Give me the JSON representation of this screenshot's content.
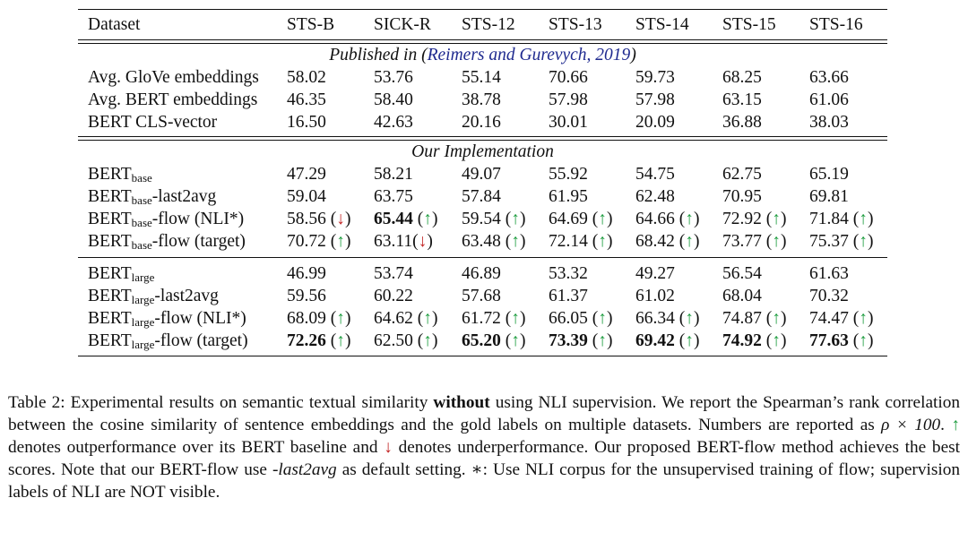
{
  "table": {
    "header": [
      "Dataset",
      "STS-B",
      "SICK-R",
      "STS-12",
      "STS-13",
      "STS-14",
      "STS-15",
      "STS-16"
    ],
    "sections": [
      {
        "title_prefix": "Published in (",
        "citation": "Reimers and Gurevych, 2019",
        "title_suffix": ")",
        "rows": [
          {
            "label": "Avg. GloVe embeddings",
            "cells": [
              {
                "v": "58.02"
              },
              {
                "v": "53.76"
              },
              {
                "v": "55.14"
              },
              {
                "v": "70.66"
              },
              {
                "v": "59.73"
              },
              {
                "v": "68.25"
              },
              {
                "v": "63.66"
              }
            ]
          },
          {
            "label": "Avg. BERT embeddings",
            "cells": [
              {
                "v": "46.35"
              },
              {
                "v": "58.40"
              },
              {
                "v": "38.78"
              },
              {
                "v": "57.98"
              },
              {
                "v": "57.98"
              },
              {
                "v": "63.15"
              },
              {
                "v": "61.06"
              }
            ]
          },
          {
            "label": "BERT CLS-vector",
            "cells": [
              {
                "v": "16.50"
              },
              {
                "v": "42.63"
              },
              {
                "v": "20.16"
              },
              {
                "v": "30.01"
              },
              {
                "v": "20.09"
              },
              {
                "v": "36.88"
              },
              {
                "v": "38.03"
              }
            ]
          }
        ]
      },
      {
        "title": "Our Implementation",
        "rows": [
          {
            "label": "BERT",
            "sub": "base",
            "suffix": "",
            "cells": [
              {
                "v": "47.29"
              },
              {
                "v": "58.21"
              },
              {
                "v": "49.07"
              },
              {
                "v": "55.92"
              },
              {
                "v": "54.75"
              },
              {
                "v": "62.75"
              },
              {
                "v": "65.19"
              }
            ]
          },
          {
            "label": "BERT",
            "sub": "base",
            "suffix": "-last2avg",
            "cells": [
              {
                "v": "59.04"
              },
              {
                "v": "63.75"
              },
              {
                "v": "57.84"
              },
              {
                "v": "61.95"
              },
              {
                "v": "62.48"
              },
              {
                "v": "70.95"
              },
              {
                "v": "69.81"
              }
            ]
          },
          {
            "label": "BERT",
            "sub": "base",
            "suffix": "-flow (NLI*)",
            "cells": [
              {
                "v": "58.56",
                "a": "down"
              },
              {
                "v": "65.44",
                "a": "up",
                "b": true
              },
              {
                "v": "59.54",
                "a": "up"
              },
              {
                "v": "64.69",
                "a": "up"
              },
              {
                "v": "64.66",
                "a": "up"
              },
              {
                "v": "72.92",
                "a": "up"
              },
              {
                "v": "71.84",
                "a": "up"
              }
            ]
          },
          {
            "label": "BERT",
            "sub": "base",
            "suffix": "-flow (target)",
            "cells": [
              {
                "v": "70.72",
                "a": "up"
              },
              {
                "v": "63.11",
                "a": "down",
                "nosp": true
              },
              {
                "v": "63.48",
                "a": "up"
              },
              {
                "v": "72.14",
                "a": "up"
              },
              {
                "v": "68.42",
                "a": "up"
              },
              {
                "v": "73.77",
                "a": "up"
              },
              {
                "v": "75.37",
                "a": "up"
              }
            ]
          }
        ]
      },
      {
        "rows": [
          {
            "label": "BERT",
            "sub": "large",
            "suffix": "",
            "cells": [
              {
                "v": "46.99"
              },
              {
                "v": "53.74"
              },
              {
                "v": "46.89"
              },
              {
                "v": "53.32"
              },
              {
                "v": "49.27"
              },
              {
                "v": "56.54"
              },
              {
                "v": "61.63"
              }
            ]
          },
          {
            "label": "BERT",
            "sub": "large",
            "suffix": "-last2avg",
            "cells": [
              {
                "v": "59.56"
              },
              {
                "v": "60.22"
              },
              {
                "v": "57.68"
              },
              {
                "v": "61.37"
              },
              {
                "v": "61.02"
              },
              {
                "v": "68.04"
              },
              {
                "v": "70.32"
              }
            ]
          },
          {
            "label": "BERT",
            "sub": "large",
            "suffix": "-flow (NLI*)",
            "cells": [
              {
                "v": "68.09",
                "a": "up"
              },
              {
                "v": "64.62",
                "a": "up"
              },
              {
                "v": "61.72",
                "a": "up"
              },
              {
                "v": "66.05",
                "a": "up"
              },
              {
                "v": "66.34",
                "a": "up"
              },
              {
                "v": "74.87",
                "a": "up"
              },
              {
                "v": "74.47",
                "a": "up"
              }
            ]
          },
          {
            "label": "BERT",
            "sub": "large",
            "suffix": "-flow (target)",
            "cells": [
              {
                "v": "72.26",
                "a": "up",
                "b": true
              },
              {
                "v": "62.50",
                "a": "up"
              },
              {
                "v": "65.20",
                "a": "up",
                "b": true
              },
              {
                "v": "73.39",
                "a": "up",
                "b": true
              },
              {
                "v": "69.42",
                "a": "up",
                "b": true
              },
              {
                "v": "74.92",
                "a": "up",
                "b": true
              },
              {
                "v": "77.63",
                "a": "up",
                "b": true
              }
            ]
          }
        ]
      }
    ]
  },
  "caption": {
    "p1": "Table 2: Experimental results on semantic textual similarity ",
    "bold1": "without",
    "p2": " using NLI supervision. We report the Spear­man’s rank correlation between the cosine similarity of sentence embeddings and the gold labels on multiple datasets. Numbers are reported as ",
    "math": "ρ × 100",
    "p3": ". ",
    "up_arrow": "↑",
    "p4": " denotes outperformance over its BERT baseline and ",
    "down_arrow": "↓",
    "p5": " denotes under­performance. Our proposed BERT-flow method achieves the best scores. Note that our BERT-flow use ",
    "italic1": "-last2avg",
    "p6": " as default setting. ",
    "star": "∗",
    "p7": ": Use NLI corpus for the unsupervised training of flow; supervision labels of NLI are NOT visible."
  },
  "colors": {
    "up": "#1a9b3c",
    "down": "#c22424",
    "citation": "#1f2a8f"
  }
}
